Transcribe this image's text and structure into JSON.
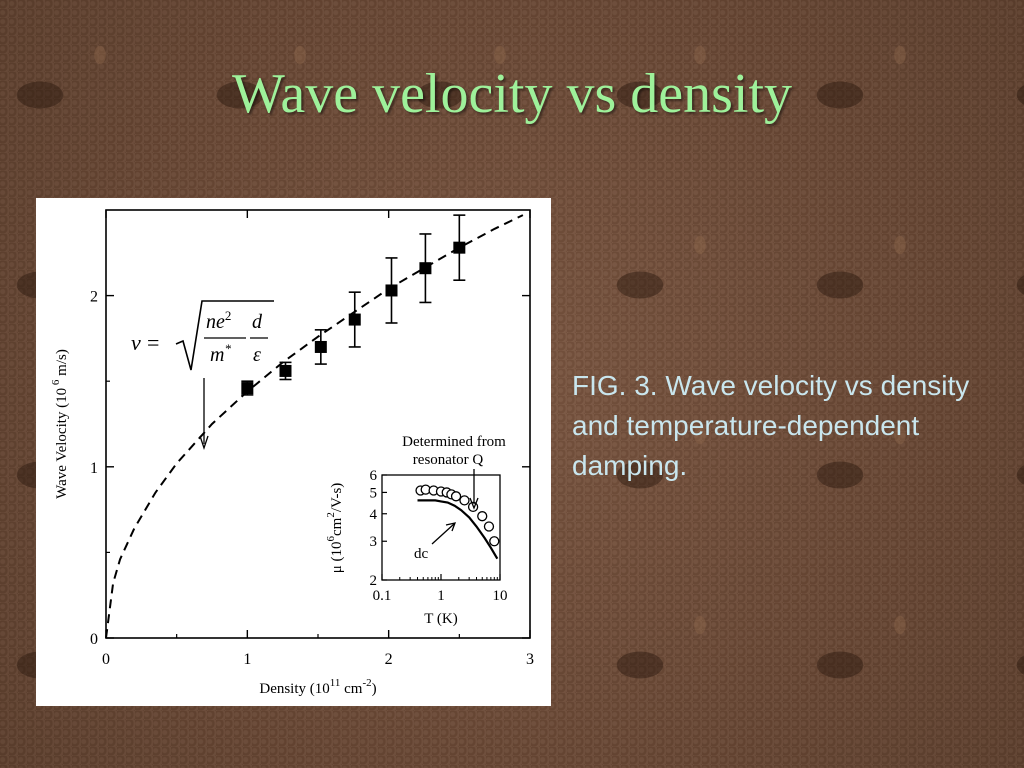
{
  "slide": {
    "title": "Wave velocity vs density",
    "caption": "FIG. 3. Wave velocity vs density and temperature-dependent damping."
  },
  "colors": {
    "title": "#9ef19a",
    "caption": "#c9e6ee",
    "background": "#6b4a36"
  },
  "chart_data": [
    {
      "type": "scatter",
      "xlabel": "Density (10^11 cm^-2)",
      "ylabel": "Wave Velocity (10^6 m/s)",
      "xlim": [
        0,
        3
      ],
      "ylim": [
        0,
        2.5
      ],
      "x_ticks": [
        "0",
        "1",
        "2",
        "3"
      ],
      "y_ticks": [
        "0",
        "1",
        "2"
      ],
      "equation": "v = √(ne²/m* · d/ε)",
      "series": [
        {
          "style": "markers-with-error-bars",
          "points": [
            {
              "x": 1.0,
              "y": 1.46,
              "err": 0.04
            },
            {
              "x": 1.27,
              "y": 1.56,
              "err": 0.05
            },
            {
              "x": 1.52,
              "y": 1.7,
              "err": 0.1
            },
            {
              "x": 1.76,
              "y": 1.86,
              "err": 0.16
            },
            {
              "x": 2.02,
              "y": 2.03,
              "err": 0.19
            },
            {
              "x": 2.26,
              "y": 2.16,
              "err": 0.2
            },
            {
              "x": 2.5,
              "y": 2.28,
              "err": 0.19
            }
          ]
        },
        {
          "style": "dashed-line",
          "function": "1.44*sqrt(x)",
          "x": [
            0,
            0.05,
            0.1,
            0.2,
            0.35,
            0.5,
            0.75,
            1.0,
            1.25,
            1.5,
            1.75,
            2.0,
            2.25,
            2.5,
            2.75,
            2.95
          ],
          "y": [
            0,
            0.32,
            0.46,
            0.64,
            0.85,
            1.02,
            1.25,
            1.44,
            1.61,
            1.76,
            1.9,
            2.04,
            2.16,
            2.28,
            2.39,
            2.47
          ]
        }
      ]
    },
    {
      "type": "scatter",
      "scale": "log-log",
      "xlabel": "T (K)",
      "ylabel": "μ (10^6 cm^2/V-s)",
      "xlim": [
        0.1,
        10
      ],
      "ylim": [
        2,
        6
      ],
      "x_ticks": [
        "0.1",
        "1",
        "10"
      ],
      "y_ticks": [
        "2",
        "3",
        "4",
        "5",
        "6"
      ],
      "annotations": [
        "Determined from",
        "resonator Q",
        "dc"
      ],
      "series": [
        {
          "style": "open-circles",
          "x": [
            0.45,
            0.55,
            0.75,
            1.0,
            1.25,
            1.5,
            1.8,
            2.5,
            3.5,
            5.0,
            6.5,
            8.0
          ],
          "y": [
            5.1,
            5.15,
            5.1,
            5.05,
            5.0,
            4.9,
            4.8,
            4.6,
            4.3,
            3.9,
            3.5,
            3.0
          ]
        },
        {
          "style": "solid-line",
          "x": [
            0.4,
            0.6,
            0.8,
            1.0,
            1.3,
            1.7,
            2.2,
            3.0,
            4.0,
            5.5,
            7.0,
            9.0
          ],
          "y": [
            4.6,
            4.6,
            4.6,
            4.55,
            4.5,
            4.35,
            4.15,
            3.85,
            3.5,
            3.1,
            2.8,
            2.5
          ]
        }
      ]
    }
  ]
}
